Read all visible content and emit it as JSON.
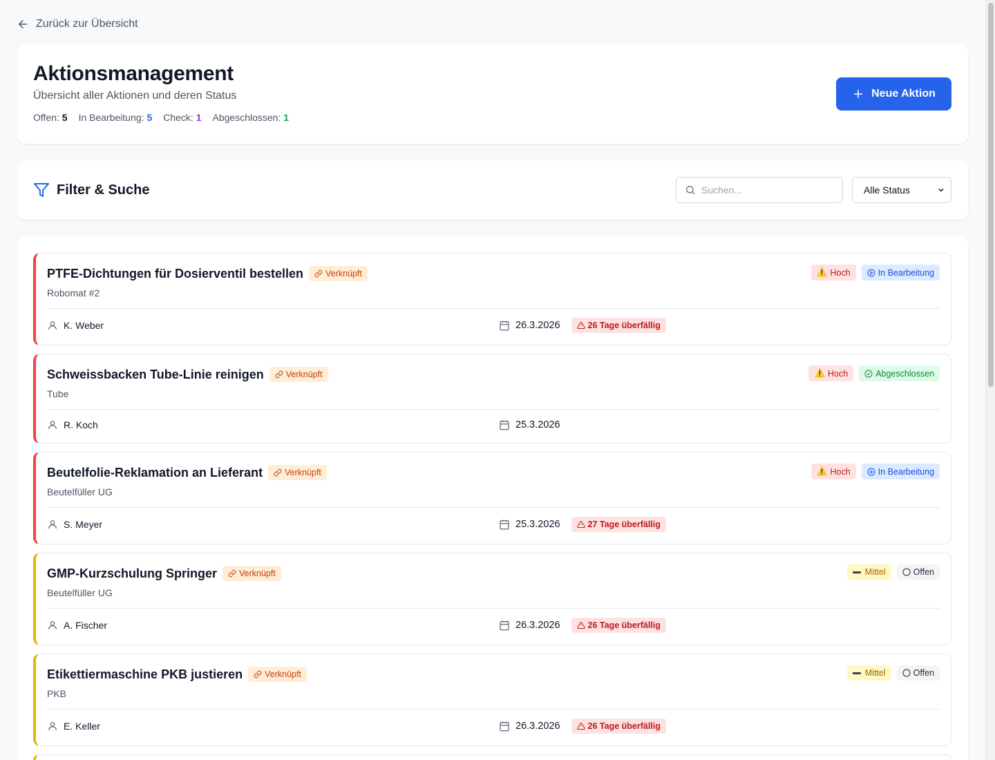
{
  "back_label": "Zurück zur Übersicht",
  "header": {
    "title": "Aktionsmanagement",
    "subtitle": "Übersicht aller Aktionen und deren Status",
    "stats": [
      {
        "label": "Offen:",
        "value": "5",
        "color": "#111827"
      },
      {
        "label": "In Bearbeitung:",
        "value": "5",
        "color": "#2563eb"
      },
      {
        "label": "Check:",
        "value": "1",
        "color": "#9333ea"
      },
      {
        "label": "Abgeschlossen:",
        "value": "1",
        "color": "#16a34a"
      }
    ],
    "new_button": "Neue Aktion"
  },
  "filter": {
    "title": "Filter & Suche",
    "search_placeholder": "Suchen...",
    "status_select": "Alle Status"
  },
  "actions": [
    {
      "title": "PTFE-Dichtungen für Dosierventil bestellen",
      "linked": "Verknüpft",
      "location": "Robomat #2",
      "person": "K. Weber",
      "date": "26.3.2026",
      "overdue": "26 Tage überfällig",
      "priority": "Hoch",
      "status": "In Bearbeitung"
    },
    {
      "title": "Schweissbacken Tube-Linie reinigen",
      "linked": "Verknüpft",
      "location": "Tube",
      "person": "R. Koch",
      "date": "25.3.2026",
      "overdue": "",
      "priority": "Hoch",
      "status": "Abgeschlossen"
    },
    {
      "title": "Beutelfolie-Reklamation an Lieferant",
      "linked": "Verknüpft",
      "location": "Beutelfüller UG",
      "person": "S. Meyer",
      "date": "25.3.2026",
      "overdue": "27 Tage überfällig",
      "priority": "Hoch",
      "status": "In Bearbeitung"
    },
    {
      "title": "GMP-Kurzschulung Springer",
      "linked": "Verknüpft",
      "location": "Beutelfüller UG",
      "person": "A. Fischer",
      "date": "26.3.2026",
      "overdue": "26 Tage überfällig",
      "priority": "Mittel",
      "status": "Offen"
    },
    {
      "title": "Etikettiermaschine PKB justieren",
      "linked": "Verknüpft",
      "location": "PKB",
      "person": "E. Keller",
      "date": "26.3.2026",
      "overdue": "26 Tage überfällig",
      "priority": "Mittel",
      "status": "Offen"
    }
  ],
  "colors": {
    "accent": "#2563eb",
    "high": "#ef4444",
    "medium": "#eab308"
  }
}
